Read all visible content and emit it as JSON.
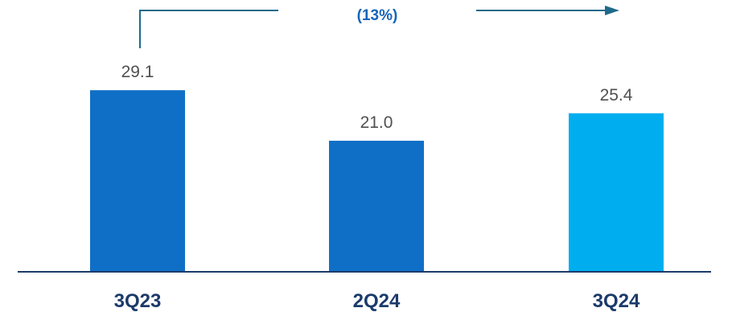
{
  "chart_data": {
    "type": "bar",
    "categories": [
      "3Q23",
      "2Q24",
      "3Q24"
    ],
    "values": [
      29.1,
      21.0,
      25.4
    ],
    "value_labels": [
      "29.1",
      "21.0",
      "25.4"
    ],
    "bar_colors": [
      "#0f6fc6",
      "#0f6fc6",
      "#00aeef"
    ],
    "ylim": [
      0,
      40
    ],
    "grid": false,
    "title": "",
    "xlabel": "",
    "ylabel": "",
    "annotation": {
      "label": "(13%)",
      "from": "3Q23",
      "to": "3Q24"
    }
  },
  "colors": {
    "axis": "#1c3a6b",
    "category_text": "#1c3a6b",
    "value_text": "#505050",
    "annotation_text": "#1565b8",
    "annotation_line": "#1f6a8c"
  }
}
